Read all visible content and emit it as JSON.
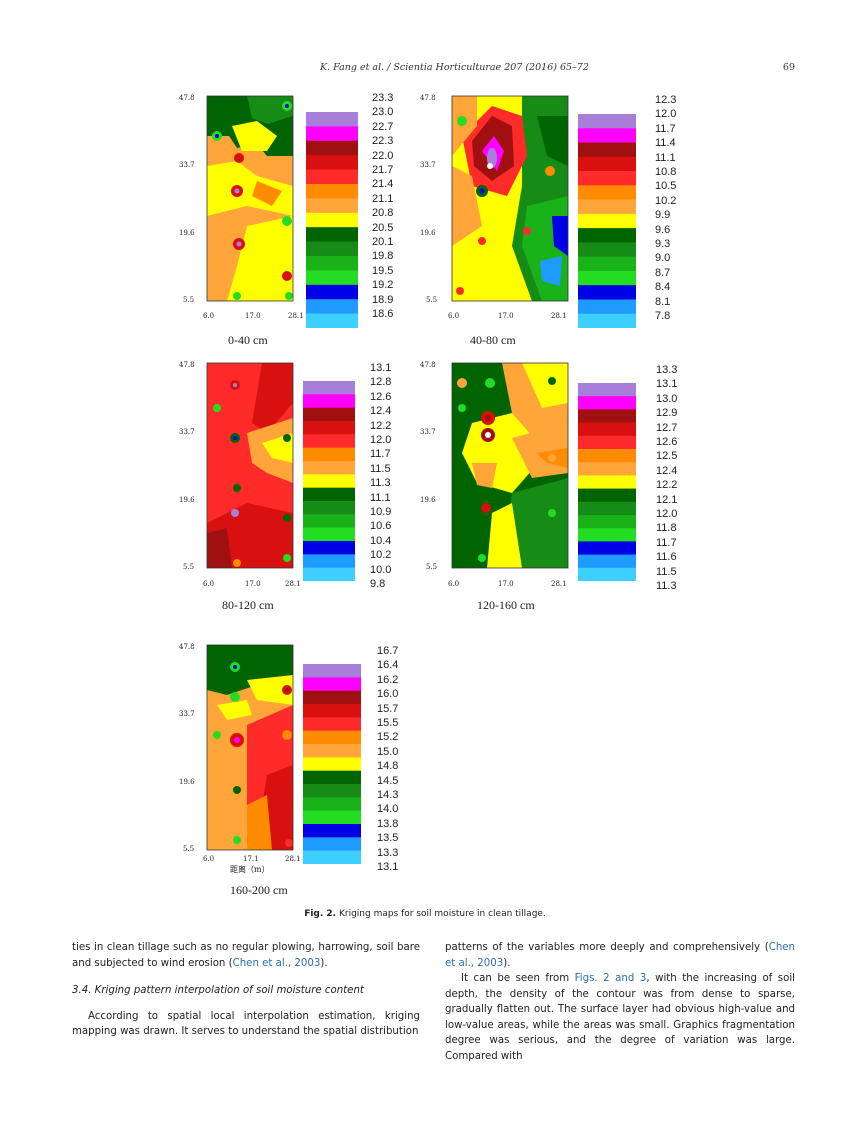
{
  "header": {
    "running_title": "K. Fang et al. / Scientia Horticulturae 207 (2016) 65–72",
    "page_number": "69"
  },
  "panels": [
    {
      "label": "0-40 cm",
      "y_ticks": [
        "47.8",
        "33.7",
        "19.6",
        "5.5"
      ],
      "x_ticks": [
        "6.0",
        "17.0",
        "28.1"
      ],
      "legend_values": [
        "23.3",
        "23.0",
        "22.7",
        "22.3",
        "22.0",
        "21.7",
        "21.4",
        "21.1",
        "20.8",
        "20.5",
        "20.1",
        "19.8",
        "19.5",
        "19.2",
        "18.9",
        "18.6"
      ]
    },
    {
      "label": "40-80 cm",
      "y_ticks": [
        "47.8",
        "33.7",
        "19.6",
        "5.5"
      ],
      "x_ticks": [
        "6.0",
        "17.0",
        "28.1"
      ],
      "legend_values": [
        "12.3",
        "12.0",
        "11.7",
        "11.4",
        "11.1",
        "10.8",
        "10.5",
        "10.2",
        "9.9",
        "9.6",
        "9.3",
        "9.0",
        "8.7",
        "8.4",
        "8.1",
        "7.8"
      ]
    },
    {
      "label": "80-120 cm",
      "y_ticks": [
        "47.8",
        "33.7",
        "19.6",
        "5.5"
      ],
      "x_ticks": [
        "6.0",
        "17.0",
        "28.1"
      ],
      "legend_values": [
        "13.1",
        "12.8",
        "12.6",
        "12.4",
        "12.2",
        "12.0",
        "11.7",
        "11.5",
        "11.3",
        "11.1",
        "10.9",
        "10.6",
        "10.4",
        "10.2",
        "10.0",
        "9.8"
      ]
    },
    {
      "label": "120-160 cm",
      "y_ticks": [
        "47.8",
        "33.7",
        "19.6",
        "5.5"
      ],
      "x_ticks": [
        "6.0",
        "17.0",
        "28.1"
      ],
      "legend_values": [
        "13.3",
        "13.1",
        "13.0",
        "12.9",
        "12.7",
        "12.6",
        "12.5",
        "12.4",
        "12.2",
        "12.1",
        "12.0",
        "11.8",
        "11.7",
        "11.6",
        "11.5",
        "11.3"
      ]
    },
    {
      "label": "160-200 cm",
      "y_ticks": [
        "47.8",
        "33.7",
        "19.6",
        "5.5"
      ],
      "x_ticks": [
        "6.0",
        "17.1",
        "28.1"
      ],
      "x_axis_title": "距离（m）",
      "legend_values": [
        "16.7",
        "16.4",
        "16.2",
        "16.0",
        "15.7",
        "15.5",
        "15.2",
        "15.0",
        "14.8",
        "14.5",
        "14.3",
        "14.0",
        "13.8",
        "13.5",
        "13.3",
        "13.1"
      ]
    }
  ],
  "legend_colors": [
    "#a87fd8",
    "#ff00ff",
    "#a01010",
    "#d81010",
    "#ff2a2a",
    "#ff8c00",
    "#ffa53a",
    "#ffff00",
    "#006400",
    "#168c16",
    "#19b219",
    "#22dd22",
    "#0000e6",
    "#1f9bff",
    "#3ccfff"
  ],
  "caption": {
    "label": "Fig. 2.",
    "text": "Kriging maps for soil moisture in clean tillage."
  },
  "body": {
    "left_p1_a": "ties in clean tillage such as no regular plowing, harrowing, soil bare and subjected to wind erosion (",
    "left_p1_ref": "Chen et al., 2003",
    "left_p1_b": ").",
    "section_heading": "3.4.  Kriging pattern interpolation of soil moisture content",
    "left_p2": "According to spatial local interpolation estimation, kriging mapping was drawn. It serves to understand the spatial distribution",
    "right_p1_a": "patterns of the variables more deeply and comprehensively (",
    "right_p1_ref": "Chen et al., 2003",
    "right_p1_b": ").",
    "right_p2_a": "It can be seen from ",
    "right_p2_ref": "Figs. 2 and 3",
    "right_p2_b": ", with the increasing of soil depth, the density of the contour was from dense to sparse, gradually flatten out. The surface layer had obvious high-value and low-value areas, while the areas was small. Graphics fragmentation degree was serious, and the degree of variation was large. Compared with"
  }
}
